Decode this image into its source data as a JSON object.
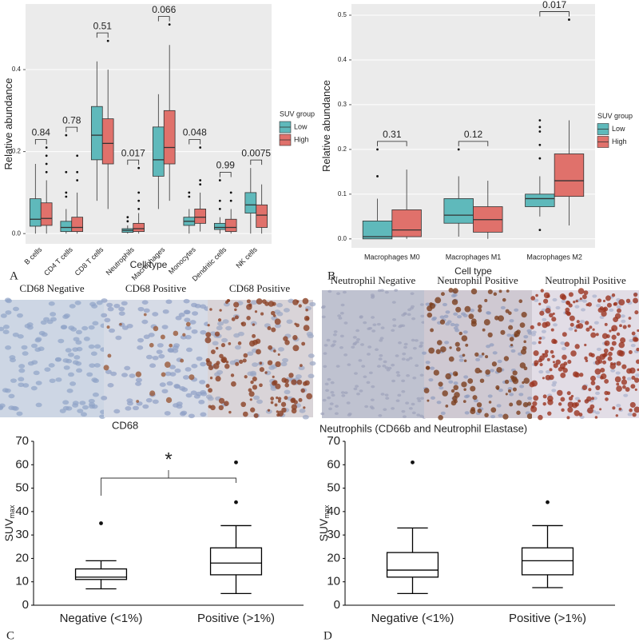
{
  "chart_data": [
    {
      "type": "box",
      "panel": "A",
      "xlabel": "Cell type",
      "ylabel": "Relative abundance",
      "categories": [
        "B cells",
        "CD4 T cells",
        "CD8 T cells",
        "Neutrophils",
        "Macrophages",
        "Monocytes",
        "Dendritic cells",
        "NK cells"
      ],
      "pvalues": [
        "0.84",
        "0.78",
        "0.51",
        "0.017",
        "0.066",
        "0.048",
        "0.99",
        "0.0075"
      ],
      "ylim": [
        -0.025,
        0.56
      ],
      "yticks": [
        {
          "value": 0,
          "label": "0.0"
        },
        0.2,
        0.4
      ],
      "grid": true,
      "panel_background": "#ebebeb",
      "legend": "right",
      "legend_title": "SUV group",
      "series": [
        {
          "name": "Low",
          "color": "#5fb9bb",
          "whisker_low": [
            0.0,
            0.0,
            0.08,
            0.0,
            0.06,
            0.0,
            0.0,
            0.0
          ],
          "q1": [
            0.018,
            0.005,
            0.18,
            0.003,
            0.14,
            0.02,
            0.01,
            0.05
          ],
          "median": [
            0.035,
            0.015,
            0.24,
            0.008,
            0.18,
            0.03,
            0.015,
            0.07
          ],
          "q3": [
            0.085,
            0.03,
            0.31,
            0.012,
            0.26,
            0.04,
            0.025,
            0.1
          ],
          "whisker_high": [
            0.17,
            0.06,
            0.42,
            0.02,
            0.34,
            0.06,
            0.04,
            0.16
          ],
          "outliers": [
            [],
            [
              0.09,
              0.1,
              0.15,
              0.24
            ],
            [],
            [
              0.03,
              0.04
            ],
            [],
            [
              0.09,
              0.1
            ],
            [
              0.06,
              0.08,
              0.13
            ],
            []
          ]
        },
        {
          "name": "High",
          "color": "#e0716b",
          "whisker_low": [
            0.0,
            0.0,
            0.06,
            0.0,
            0.08,
            0.005,
            0.0,
            0.0
          ],
          "q1": [
            0.02,
            0.005,
            0.17,
            0.005,
            0.17,
            0.025,
            0.005,
            0.015
          ],
          "median": [
            0.037,
            0.015,
            0.22,
            0.012,
            0.21,
            0.04,
            0.015,
            0.045
          ],
          "q3": [
            0.075,
            0.04,
            0.28,
            0.025,
            0.3,
            0.06,
            0.035,
            0.07
          ],
          "whisker_high": [
            0.13,
            0.1,
            0.4,
            0.05,
            0.46,
            0.1,
            0.06,
            0.12
          ],
          "outliers": [
            [
              0.15,
              0.17,
              0.19,
              0.21
            ],
            [
              0.13,
              0.15,
              0.19
            ],
            [
              0.47
            ],
            [
              0.06,
              0.08,
              0.1,
              0.16
            ],
            [
              0.51
            ],
            [
              0.12,
              0.13,
              0.21
            ],
            [
              0.08,
              0.1
            ],
            []
          ]
        }
      ]
    },
    {
      "type": "box",
      "panel": "B",
      "xlabel": "Cell type",
      "ylabel": "Relative abundance",
      "categories": [
        "Macrophages M0",
        "Macrophages M1",
        "Macrophages M2"
      ],
      "pvalues": [
        "0.31",
        "0.12",
        "0.017"
      ],
      "ylim": [
        -0.02,
        0.525
      ],
      "yticks": [
        {
          "value": 0,
          "label": "0.0"
        },
        0.1,
        0.2,
        0.3,
        0.4,
        0.5
      ],
      "grid": true,
      "panel_background": "#ebebeb",
      "legend": "right",
      "legend_title": "SUV group",
      "series": [
        {
          "name": "Low",
          "color": "#5fb9bb",
          "whisker_low": [
            0.0,
            0.005,
            0.05
          ],
          "q1": [
            0.0,
            0.035,
            0.072
          ],
          "median": [
            0.005,
            0.053,
            0.09
          ],
          "q3": [
            0.04,
            0.09,
            0.1
          ],
          "whisker_high": [
            0.09,
            0.14,
            0.14
          ],
          "outliers": [
            [
              0.14,
              0.2
            ],
            [
              0.2
            ],
            [
              0.02,
              0.18,
              0.21,
              0.24,
              0.25,
              0.265
            ]
          ]
        },
        {
          "name": "High",
          "color": "#e0716b",
          "whisker_low": [
            0.0,
            0.0,
            0.03
          ],
          "q1": [
            0.005,
            0.015,
            0.095
          ],
          "median": [
            0.02,
            0.043,
            0.13
          ],
          "q3": [
            0.065,
            0.072,
            0.19
          ],
          "whisker_high": [
            0.155,
            0.13,
            0.265
          ],
          "outliers": [
            [],
            [],
            [
              0.49
            ]
          ]
        }
      ]
    },
    {
      "type": "box",
      "panel": "C",
      "ylabel": "SUV",
      "ylabel_sub": "max",
      "annotation": "*",
      "categories": [
        "Negative (<1%)",
        "Positive (>1%)"
      ],
      "ylim": [
        0,
        70
      ],
      "yticks": [
        0,
        10,
        20,
        30,
        40,
        50,
        60,
        70
      ],
      "grid": false,
      "whisker_caps": true,
      "series": [
        {
          "color": "#ffffff",
          "whisker_low": [
            7,
            5
          ],
          "q1": [
            11,
            13
          ],
          "median": [
            12,
            18
          ],
          "q3": [
            15.5,
            24.5
          ],
          "whisker_high": [
            19,
            34
          ],
          "outliers": [
            [
              35
            ],
            [
              44,
              61
            ]
          ]
        }
      ]
    },
    {
      "type": "box",
      "panel": "D",
      "ylabel": "SUV",
      "ylabel_sub": "max",
      "categories": [
        "Negative (<1%)",
        "Positive (>1%)"
      ],
      "ylim": [
        0,
        70
      ],
      "yticks": [
        0,
        10,
        20,
        30,
        40,
        50,
        60,
        70
      ],
      "grid": false,
      "whisker_caps": true,
      "series": [
        {
          "color": "#ffffff",
          "whisker_low": [
            5,
            7.5
          ],
          "q1": [
            12,
            13
          ],
          "median": [
            15,
            19
          ],
          "q3": [
            22.5,
            24.5
          ],
          "whisker_high": [
            33,
            34
          ],
          "outliers": [
            [
              61
            ],
            [
              44
            ]
          ]
        }
      ]
    }
  ],
  "micrographs": [
    {
      "caption": "CD68",
      "tiles": [
        "CD68 Negative",
        "CD68 Positive",
        "CD68 Positive"
      ]
    },
    {
      "caption": "Neutrophils (CD66b and Neutrophil Elastase)",
      "tiles": [
        "Neutrophil Negative",
        "Neutrophil Positive",
        "Neutrophil Positive"
      ]
    }
  ]
}
